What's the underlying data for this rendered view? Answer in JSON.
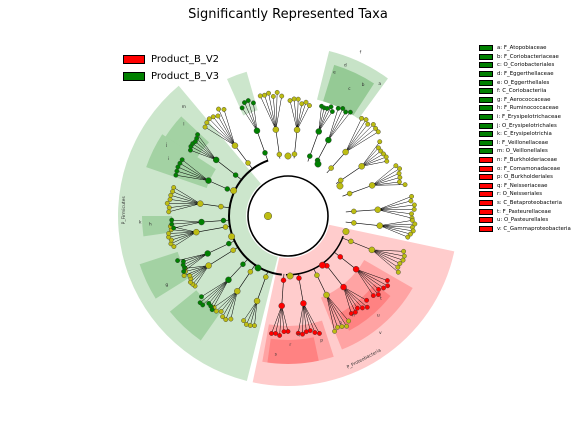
{
  "chart_data": {
    "type": "cladogram",
    "title": "Significantly Represented Taxa",
    "groups": [
      {
        "name": "Product_B_V2",
        "color": "#ff0000"
      },
      {
        "name": "Product_B_V3",
        "color": "#008000"
      }
    ],
    "taxa": [
      {
        "key": "a",
        "label": "a: F_Atopobiaceae",
        "group": "Product_B_V3"
      },
      {
        "key": "b",
        "label": "b: F_Coriobacteriaceae",
        "group": "Product_B_V3"
      },
      {
        "key": "c",
        "label": "c: O_Coriobacteriales",
        "group": "Product_B_V3"
      },
      {
        "key": "d",
        "label": "d: F_Eggerthellaceae",
        "group": "Product_B_V3"
      },
      {
        "key": "e",
        "label": "e: O_Eggerthellales",
        "group": "Product_B_V3"
      },
      {
        "key": "f",
        "label": "f: C_Coriobacteriia",
        "group": "Product_B_V3"
      },
      {
        "key": "g",
        "label": "g: F_Aerococcaceae",
        "group": "Product_B_V3"
      },
      {
        "key": "h",
        "label": "h: F_Ruminococcaceae",
        "group": "Product_B_V3"
      },
      {
        "key": "i",
        "label": "i: F_Erysipelotrichaceae",
        "group": "Product_B_V3"
      },
      {
        "key": "j",
        "label": "j: O_Erysipelotrichales",
        "group": "Product_B_V3"
      },
      {
        "key": "k",
        "label": "k: C_Erysipelotrichia",
        "group": "Product_B_V3"
      },
      {
        "key": "l",
        "label": "l: F_Veillonellaceae",
        "group": "Product_B_V3"
      },
      {
        "key": "m",
        "label": "m: O_Veillonellales",
        "group": "Product_B_V3"
      },
      {
        "key": "n",
        "label": "n: F_Burkholderiaceae",
        "group": "Product_B_V2"
      },
      {
        "key": "o",
        "label": "o: F_Comamonadaceae",
        "group": "Product_B_V2"
      },
      {
        "key": "p",
        "label": "p: O_Burkholderiales",
        "group": "Product_B_V2"
      },
      {
        "key": "q",
        "label": "q: F_Neisseriaceae",
        "group": "Product_B_V2"
      },
      {
        "key": "r",
        "label": "r: O_Neisseriales",
        "group": "Product_B_V2"
      },
      {
        "key": "s",
        "label": "s: C_Betaproteobacteria",
        "group": "Product_B_V2"
      },
      {
        "key": "t",
        "label": "t: F_Pasteurellaceae",
        "group": "Product_B_V2"
      },
      {
        "key": "u",
        "label": "u: O_Pasteurellales",
        "group": "Product_B_V2"
      },
      {
        "key": "v",
        "label": "v: C_Gammaproteobacteria",
        "group": "Product_B_V2"
      }
    ],
    "phyla": [
      {
        "label": "P_Firmicutes",
        "group": "Product_B_V3"
      },
      {
        "label": "P_Proteobacteria",
        "group": "Product_B_V2"
      }
    ],
    "colors": {
      "v2": "#ff0000",
      "v3": "#008000",
      "nonsignificant": "#bdbd12"
    }
  }
}
